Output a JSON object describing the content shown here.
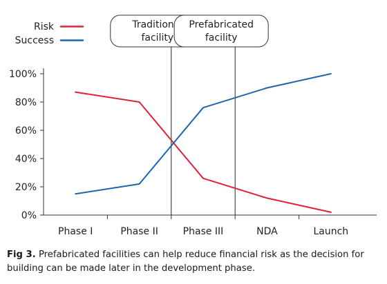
{
  "chart_data": {
    "type": "line",
    "categories": [
      "Phase I",
      "Phase II",
      "Phase III",
      "NDA",
      "Launch"
    ],
    "series": [
      {
        "name": "Risk",
        "color": "#e0203a",
        "values": [
          87,
          80,
          26,
          12,
          2
        ]
      },
      {
        "name": "Success",
        "color": "#1c64ae",
        "values": [
          15,
          22,
          76,
          90,
          100
        ]
      }
    ],
    "ylim": [
      0,
      100
    ],
    "yticks": [
      "0%",
      "20%",
      "40%",
      "60%",
      "80%",
      "100%"
    ],
    "markers": [
      {
        "label_lines": [
          "Traditional",
          "facility"
        ],
        "between": [
          "Phase II",
          "Phase III"
        ]
      },
      {
        "label_lines": [
          "Prefabricated",
          "facility"
        ],
        "between": [
          "Phase III",
          "NDA"
        ]
      }
    ],
    "grid": false,
    "legend": "top-left"
  },
  "caption": {
    "label": "Fig 3.",
    "text": " Prefabricated facilities can help reduce financial risk as the decision for building can be made later in the development phase."
  }
}
